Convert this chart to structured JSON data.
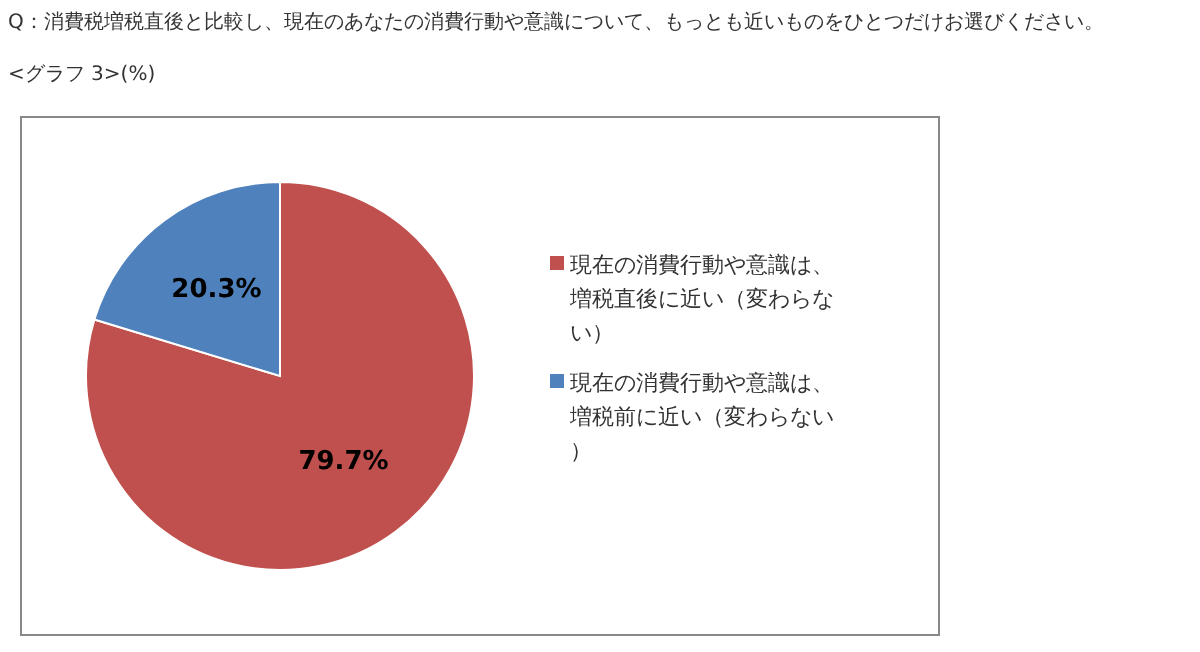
{
  "chart_data": {
    "type": "pie",
    "title": "Q：消費税増税直後と比較し、現在のあなたの消費行動や意識について、もっとも近いものをひとつだけお選びください。",
    "subtitle": "<グラフ 3>(%)",
    "categories": [
      "現在の消費行動や意識は、増税直後に近い（変わらない）",
      "現在の消費行動や意識は、増税前に近い（変わらない）"
    ],
    "values": [
      79.7,
      20.3
    ],
    "colors": [
      "#c0504d",
      "#4f81bd"
    ],
    "value_labels": [
      "79.7%",
      "20.3%"
    ],
    "legend": "right"
  }
}
